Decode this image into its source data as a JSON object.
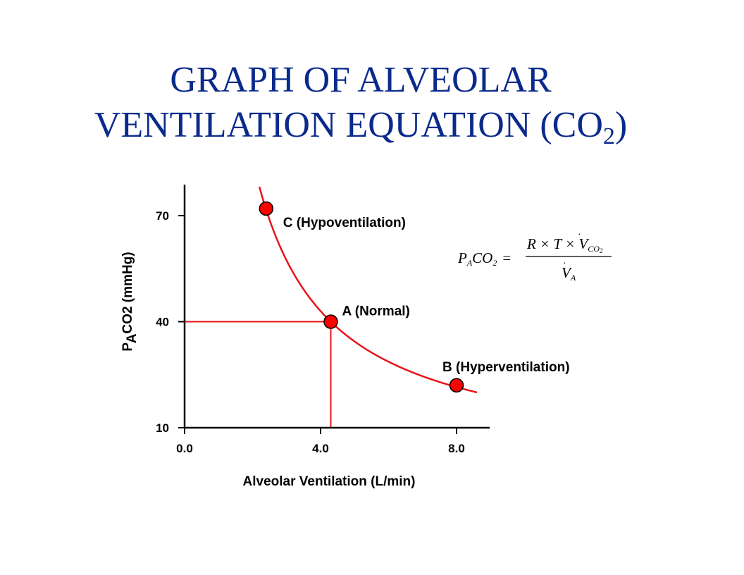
{
  "slide": {
    "title_line1": "GRAPH OF ALVEOLAR",
    "title_line2": "VENTILATION EQUATION (CO",
    "title_sub": "2",
    "title_end": ")"
  },
  "equation": {
    "lhs": "P",
    "lhs_sub": "A",
    "lhs_mid": "CO",
    "lhs_mid_sub": "2",
    "equals": "=",
    "numerator": "R × T × V",
    "numerator_sub": "CO",
    "numerator_sub2": "2",
    "denominator": "V",
    "denominator_sub": "A"
  },
  "chart_data": {
    "type": "line",
    "xlabel": "Alveolar Ventilation (L/min)",
    "ylabel_parts": {
      "p": "P",
      "a": "A",
      "co": "CO",
      "two": "2",
      "unit": " (mmHg)"
    },
    "xlim": [
      0,
      8.9
    ],
    "ylim": [
      10,
      79
    ],
    "x_ticks": [
      {
        "value": 0,
        "label": "0.0"
      },
      {
        "value": 4,
        "label": "4.0"
      },
      {
        "value": 8,
        "label": "8.0"
      }
    ],
    "y_ticks": [
      {
        "value": 10,
        "label": "10"
      },
      {
        "value": 40,
        "label": "40"
      },
      {
        "value": 70,
        "label": "70"
      }
    ],
    "curve": {
      "constant": 172,
      "x_start": 2.2,
      "x_end": 8.6,
      "color": "#e8141a"
    },
    "reference_point": {
      "x": 4.3,
      "y": 40
    },
    "points": [
      {
        "id": "C",
        "label": "C (Hypoventilation)",
        "x": 2.4,
        "y": 72
      },
      {
        "id": "A",
        "label": "A (Normal)",
        "x": 4.3,
        "y": 40
      },
      {
        "id": "B",
        "label": "B (Hyperventilation)",
        "x": 8.0,
        "y": 22
      }
    ],
    "colors": {
      "curve": "#e8141a",
      "point_fill": "#ff0000",
      "axis": "#000000",
      "title": "#0a2a8c"
    },
    "grid": false
  }
}
